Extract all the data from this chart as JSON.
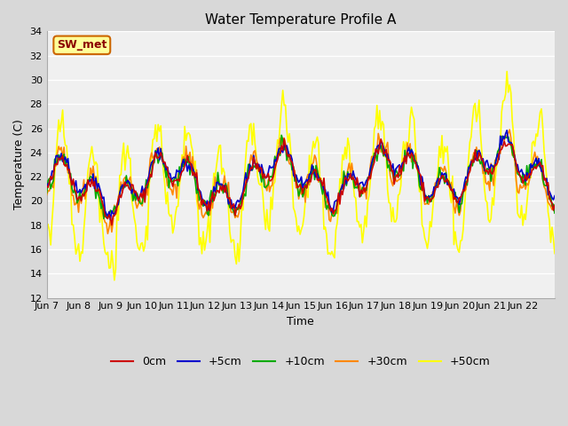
{
  "title": "Water Temperature Profile A",
  "xlabel": "Time",
  "ylabel": "Temperature (C)",
  "ylim": [
    12,
    34
  ],
  "yticks": [
    12,
    14,
    16,
    18,
    20,
    22,
    24,
    26,
    28,
    30,
    32,
    34
  ],
  "fig_bg_color": "#d8d8d8",
  "plot_bg_color": "#f0f0f0",
  "legend_label": "SW_met",
  "legend_bg": "#ffff99",
  "legend_border": "#cc6600",
  "series_colors": {
    "0cm": "#cc0000",
    "+5cm": "#0000cc",
    "+10cm": "#00aa00",
    "+30cm": "#ff8800",
    "+50cm": "#ffff00"
  },
  "series_linewidth": 1.2,
  "x_tick_labels": [
    "Jun 7",
    "Jun 8",
    "Jun 9",
    "Jun 10",
    "Jun 11",
    "Jun 12",
    "Jun 13",
    "Jun 14",
    "Jun 15",
    "Jun 16",
    "Jun 17",
    "Jun 18",
    "Jun 19",
    "Jun 20",
    "Jun 21",
    "Jun 22"
  ]
}
